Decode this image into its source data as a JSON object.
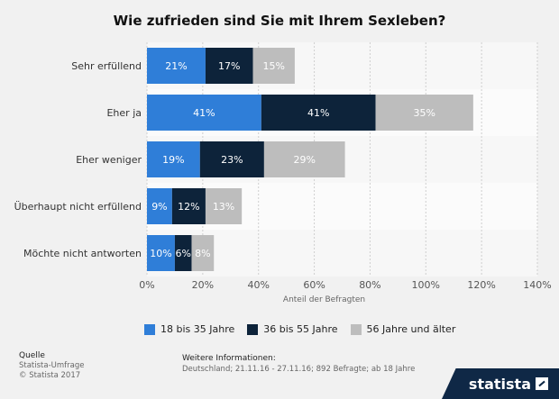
{
  "chart_data": {
    "type": "bar",
    "orientation": "horizontal",
    "stacked": true,
    "title": "Wie zufrieden sind Sie mit Ihrem Sexleben?",
    "categories": [
      "Sehr erfüllend",
      "Eher ja",
      "Eher weniger",
      "Überhaupt nicht erfüllend",
      "Möchte nicht antworten"
    ],
    "series": [
      {
        "name": "18 bis 35 Jahre",
        "values": [
          21,
          41,
          19,
          9,
          10
        ],
        "color": "#2f7ed8"
      },
      {
        "name": "36 bis 55 Jahre",
        "values": [
          17,
          41,
          23,
          12,
          6
        ],
        "color": "#0d233a"
      },
      {
        "name": "56 Jahre und älter",
        "values": [
          15,
          35,
          29,
          13,
          8
        ],
        "color": "#bdbdbd"
      }
    ],
    "xlabel": "Anteil der Befragten",
    "xlim": [
      0,
      140
    ],
    "xticks": [
      0,
      20,
      40,
      60,
      80,
      100,
      120,
      140
    ],
    "value_suffix": "%",
    "grid": "vertical dashed"
  },
  "footer": {
    "source_head": "Quelle",
    "source_line1": "Statista-Umfrage",
    "source_line2": "© Statista 2017",
    "info_head": "Weitere Informationen:",
    "info_text": "Deutschland; 21.11.16 - 27.11.16; 892 Befragte; ab 18 Jahre"
  },
  "brand": "statista"
}
